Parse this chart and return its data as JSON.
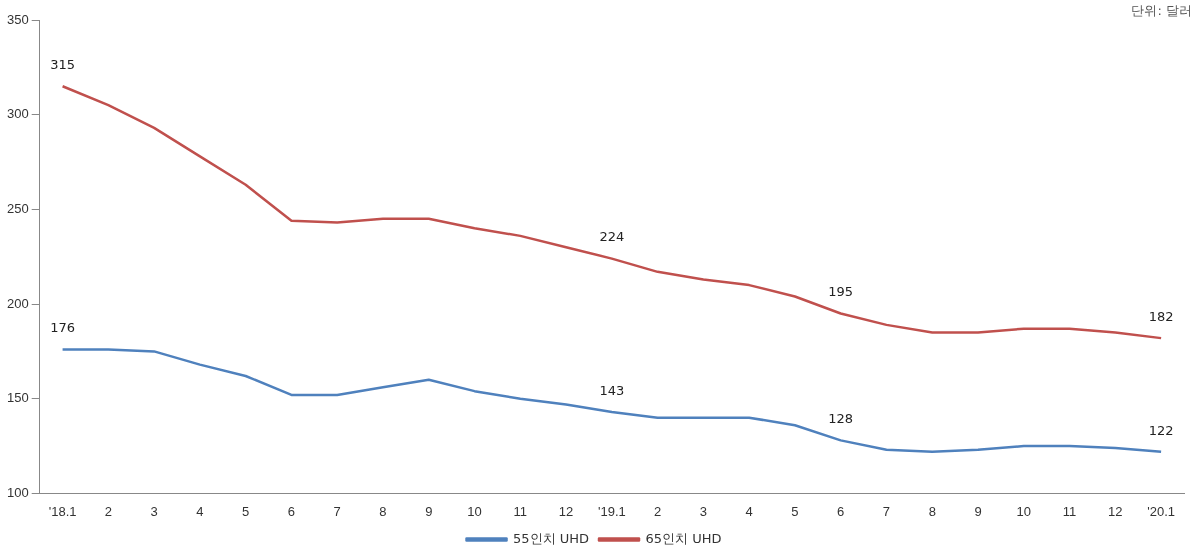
{
  "chart_data": {
    "type": "line",
    "categories": [
      "'18.1",
      "2",
      "3",
      "4",
      "5",
      "6",
      "7",
      "8",
      "9",
      "10",
      "11",
      "12",
      "'19.1",
      "2",
      "3",
      "4",
      "5",
      "6",
      "7",
      "8",
      "9",
      "10",
      "11",
      "12",
      "'20.1"
    ],
    "series": [
      {
        "name": "55인치 UHD",
        "color": "#4f81bd",
        "values": [
          176,
          176,
          175,
          168,
          162,
          152,
          152,
          156,
          160,
          154,
          150,
          147,
          143,
          140,
          140,
          140,
          136,
          128,
          123,
          122,
          123,
          125,
          125,
          124,
          122
        ],
        "value_labels": [
          "176",
          null,
          null,
          null,
          null,
          null,
          null,
          null,
          null,
          null,
          null,
          null,
          "143",
          null,
          null,
          null,
          null,
          "128",
          null,
          null,
          null,
          null,
          null,
          null,
          "122"
        ]
      },
      {
        "name": "65인치 UHD",
        "color": "#c0504d",
        "values": [
          315,
          305,
          293,
          278,
          263,
          244,
          243,
          245,
          245,
          240,
          236,
          230,
          224,
          217,
          213,
          210,
          204,
          195,
          189,
          185,
          185,
          187,
          187,
          185,
          182
        ],
        "value_labels": [
          "315",
          null,
          null,
          null,
          null,
          null,
          null,
          null,
          null,
          null,
          null,
          null,
          "224",
          null,
          null,
          null,
          null,
          "195",
          null,
          null,
          null,
          null,
          null,
          null,
          "182"
        ]
      }
    ],
    "ylim": [
      100,
      350
    ],
    "yticks": [
      100,
      150,
      200,
      250,
      300,
      350
    ],
    "grid": false,
    "legend": "bottom",
    "marker": "none",
    "line_style": "solid",
    "annotations": [
      "단위: 달러"
    ]
  }
}
